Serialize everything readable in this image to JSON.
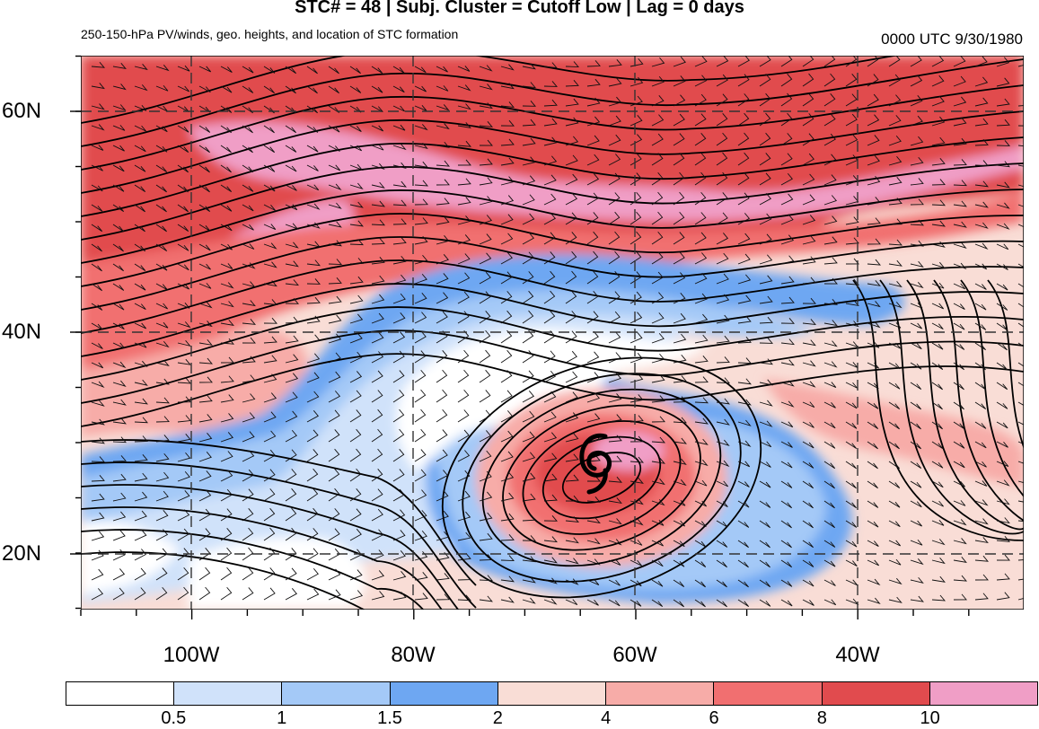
{
  "header": {
    "title": "STC# = 48 | Subj. Cluster = Cutoff Low | Lag = 0 days",
    "subtitle": "250-150-hPa PV/winds, geo. heights, and location of STC formation",
    "timestamp": "0000 UTC  9/30/1980"
  },
  "map": {
    "lat_labels": [
      "60N",
      "40N",
      "20N"
    ],
    "lon_labels": [
      "100W",
      "80W",
      "60W",
      "40W"
    ],
    "storm_symbol": "tropical-cyclone-symbol"
  },
  "colorbar": {
    "colors": [
      "#ffffff",
      "#d0e2fa",
      "#a4c9f7",
      "#6ea7f2",
      "#f9ddd6",
      "#f7aca8",
      "#f16f70",
      "#e14b4e",
      "#f09ec6"
    ],
    "labels": [
      "0.5",
      "1",
      "1.5",
      "2",
      "4",
      "6",
      "8",
      "10"
    ]
  }
}
